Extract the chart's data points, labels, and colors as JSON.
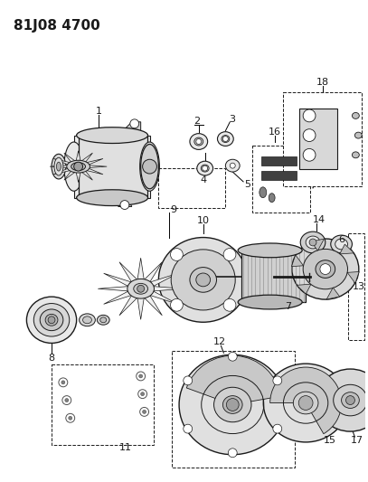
{
  "title": "81J08 4700",
  "bg_color": "#ffffff",
  "line_color": "#1a1a1a",
  "fig_width": 4.07,
  "fig_height": 5.33,
  "dpi": 100
}
